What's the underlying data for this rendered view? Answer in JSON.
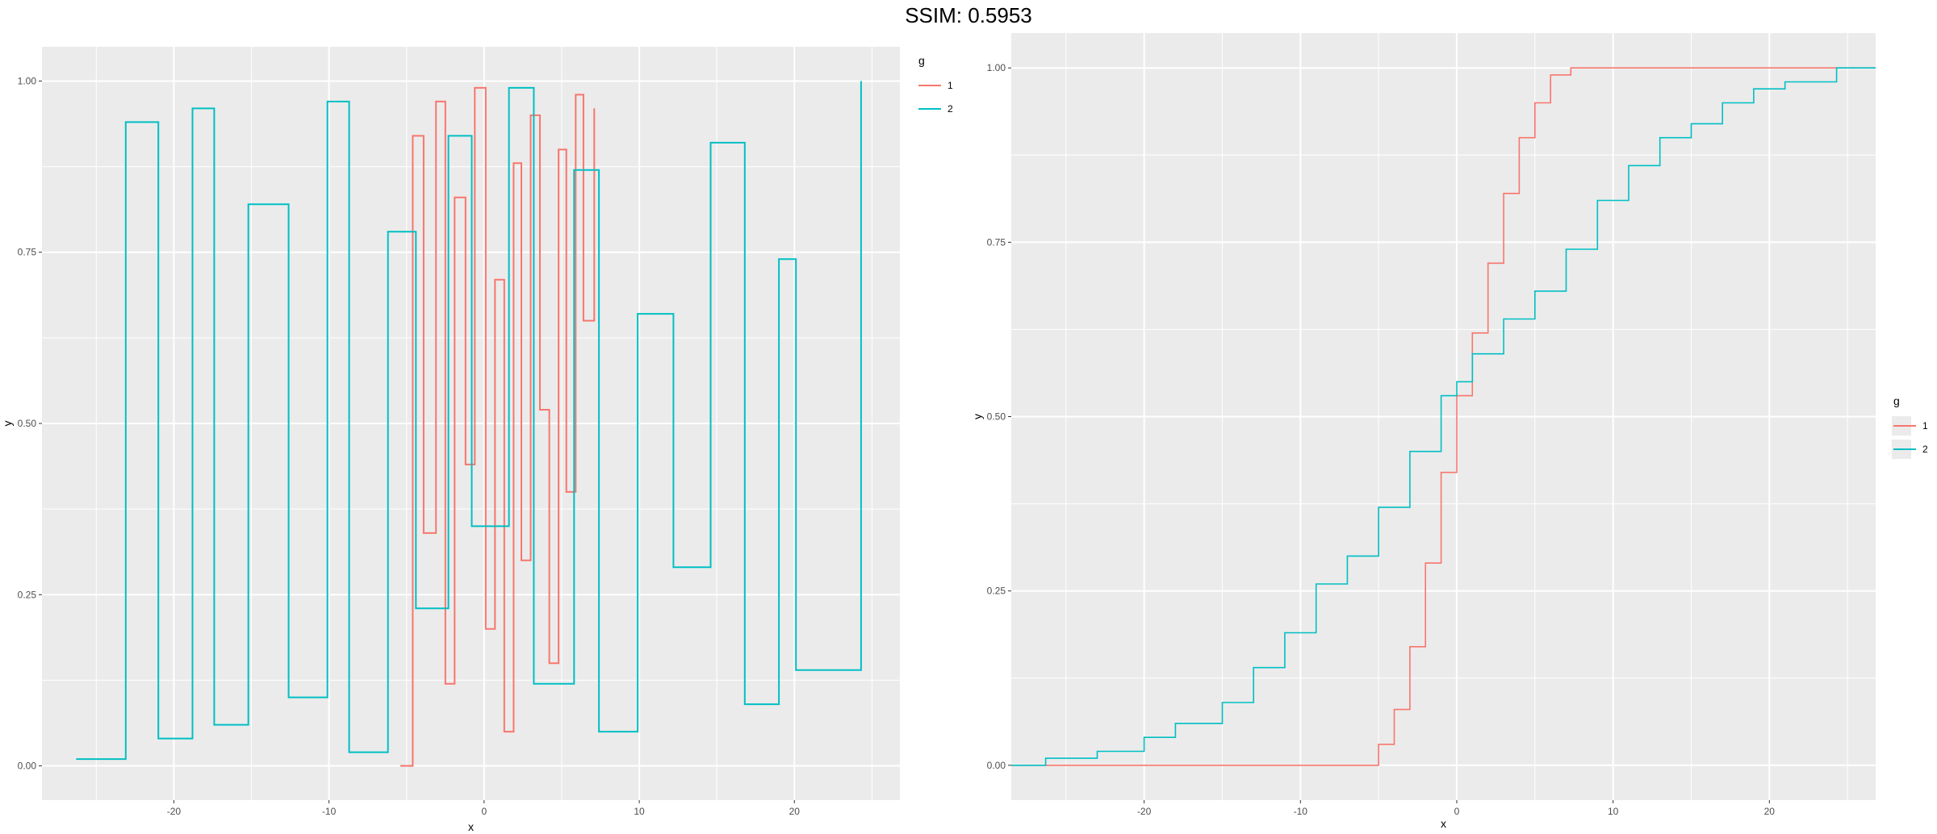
{
  "title": "SSIM: 0.5953",
  "colors": {
    "g1": "#F8766D",
    "g2": "#00BFC4",
    "panel": "#EBEBEB",
    "grid": "#FFFFFF"
  },
  "chart_data": [
    {
      "type": "line",
      "variant": "tangled-step",
      "title": "",
      "xlabel": "x",
      "ylabel": "y",
      "xlim": [
        -28.5,
        26.8
      ],
      "ylim": [
        -0.05,
        1.05
      ],
      "xticks": [
        "-20",
        "-10",
        "0",
        "10",
        "20"
      ],
      "xtick_values": [
        -20,
        -10,
        0,
        10,
        20
      ],
      "yticks": [
        "0.00",
        "0.25",
        "0.50",
        "0.75",
        "1.00"
      ],
      "ytick_values": [
        0,
        0.25,
        0.5,
        0.75,
        1
      ],
      "grid": true,
      "legend": {
        "title": "g",
        "position": "top-right",
        "entries": [
          "1",
          "2"
        ]
      },
      "series": [
        {
          "name": "1",
          "points": [
            [
              -5.4,
              0.0
            ],
            [
              -4.6,
              0.92
            ],
            [
              -3.9,
              0.34
            ],
            [
              -3.1,
              0.97
            ],
            [
              -2.5,
              0.12
            ],
            [
              -1.9,
              0.83
            ],
            [
              -1.2,
              0.44
            ],
            [
              -0.6,
              0.99
            ],
            [
              0.1,
              0.2
            ],
            [
              0.7,
              0.71
            ],
            [
              1.3,
              0.05
            ],
            [
              1.9,
              0.88
            ],
            [
              2.4,
              0.3
            ],
            [
              3.0,
              0.95
            ],
            [
              3.6,
              0.52
            ],
            [
              4.2,
              0.15
            ],
            [
              4.8,
              0.9
            ],
            [
              5.3,
              0.4
            ],
            [
              5.9,
              0.98
            ],
            [
              6.4,
              0.65
            ],
            [
              7.1,
              0.96
            ]
          ]
        },
        {
          "name": "2",
          "points": [
            [
              -26.3,
              0.01
            ],
            [
              -23.1,
              0.94
            ],
            [
              -21.0,
              0.04
            ],
            [
              -18.8,
              0.96
            ],
            [
              -17.4,
              0.06
            ],
            [
              -15.2,
              0.82
            ],
            [
              -12.6,
              0.1
            ],
            [
              -10.1,
              0.97
            ],
            [
              -8.7,
              0.02
            ],
            [
              -6.2,
              0.78
            ],
            [
              -4.4,
              0.23
            ],
            [
              -2.3,
              0.92
            ],
            [
              -0.8,
              0.35
            ],
            [
              1.6,
              0.99
            ],
            [
              3.2,
              0.12
            ],
            [
              5.8,
              0.87
            ],
            [
              7.4,
              0.05
            ],
            [
              9.9,
              0.66
            ],
            [
              12.2,
              0.29
            ],
            [
              14.6,
              0.91
            ],
            [
              16.8,
              0.09
            ],
            [
              19.0,
              0.74
            ],
            [
              20.1,
              0.14
            ],
            [
              24.3,
              1.0
            ]
          ]
        }
      ]
    },
    {
      "type": "line",
      "variant": "ecdf-step",
      "title": "",
      "xlabel": "x",
      "ylabel": "y",
      "xlim": [
        -28.5,
        26.8
      ],
      "ylim": [
        -0.05,
        1.05
      ],
      "xticks": [
        "-20",
        "-10",
        "0",
        "10",
        "20"
      ],
      "xtick_values": [
        -20,
        -10,
        0,
        10,
        20
      ],
      "yticks": [
        "0.00",
        "0.25",
        "0.50",
        "0.75",
        "1.00"
      ],
      "ytick_values": [
        0,
        0.25,
        0.5,
        0.75,
        1
      ],
      "grid": true,
      "legend": {
        "title": "g",
        "position": "right",
        "entries": [
          "1",
          "2"
        ]
      },
      "series": [
        {
          "name": "1",
          "points": [
            [
              -28.5,
              0.0
            ],
            [
              -5.5,
              0.0
            ],
            [
              -5.0,
              0.03
            ],
            [
              -4.0,
              0.08
            ],
            [
              -3.0,
              0.17
            ],
            [
              -2.0,
              0.29
            ],
            [
              -1.0,
              0.42
            ],
            [
              0.0,
              0.53
            ],
            [
              1.0,
              0.62
            ],
            [
              2.0,
              0.72
            ],
            [
              3.0,
              0.82
            ],
            [
              4.0,
              0.9
            ],
            [
              5.0,
              0.95
            ],
            [
              6.0,
              0.99
            ],
            [
              7.3,
              1.0
            ],
            [
              26.8,
              1.0
            ]
          ]
        },
        {
          "name": "2",
          "points": [
            [
              -28.5,
              0.0
            ],
            [
              -26.5,
              0.0
            ],
            [
              -26.3,
              0.01
            ],
            [
              -23.0,
              0.02
            ],
            [
              -20.0,
              0.04
            ],
            [
              -18.0,
              0.06
            ],
            [
              -15.0,
              0.09
            ],
            [
              -13.0,
              0.14
            ],
            [
              -11.0,
              0.19
            ],
            [
              -9.0,
              0.26
            ],
            [
              -7.0,
              0.3
            ],
            [
              -5.0,
              0.37
            ],
            [
              -3.0,
              0.45
            ],
            [
              -1.0,
              0.53
            ],
            [
              0.0,
              0.55
            ],
            [
              1.0,
              0.59
            ],
            [
              3.0,
              0.64
            ],
            [
              5.0,
              0.68
            ],
            [
              7.0,
              0.74
            ],
            [
              9.0,
              0.81
            ],
            [
              11.0,
              0.86
            ],
            [
              13.0,
              0.9
            ],
            [
              15.0,
              0.92
            ],
            [
              17.0,
              0.95
            ],
            [
              19.0,
              0.97
            ],
            [
              21.0,
              0.98
            ],
            [
              24.3,
              1.0
            ],
            [
              26.8,
              1.0
            ]
          ]
        }
      ]
    }
  ]
}
